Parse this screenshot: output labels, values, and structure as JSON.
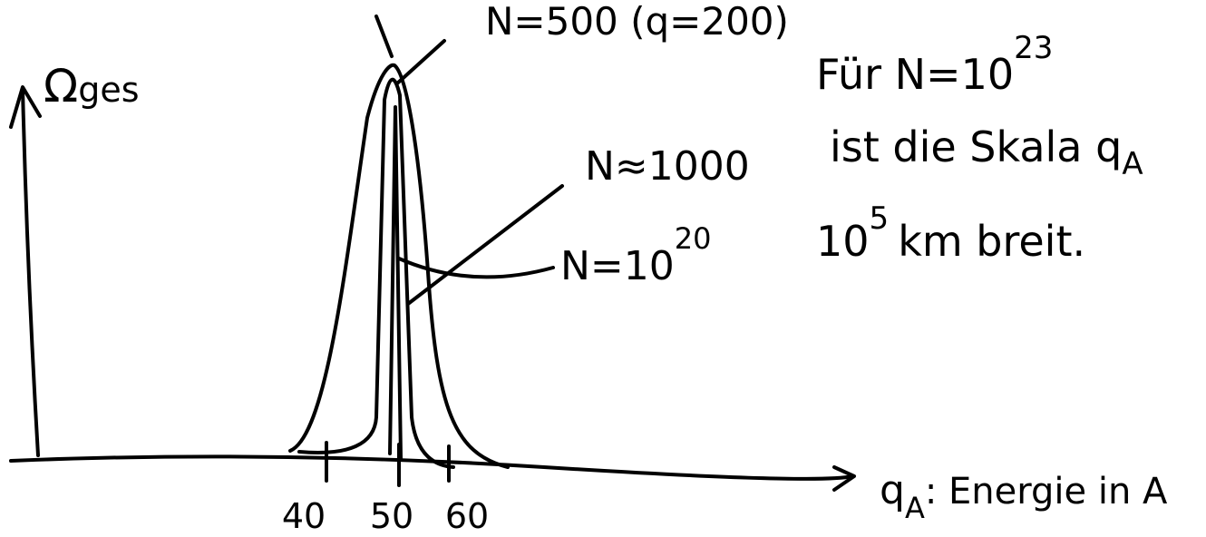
{
  "axes": {
    "y_label": "Ω",
    "y_label_sub": "ges",
    "x_label": "q",
    "x_label_sub": "A",
    "x_label_rest": ": Energie in A",
    "ticks": [
      "40",
      "50",
      "60"
    ]
  },
  "curves": [
    {
      "label": "N=500 (q=200)"
    },
    {
      "label": "N≈1000"
    },
    {
      "label": "N=10",
      "label_sup": "20"
    }
  ],
  "note": {
    "line1": "Für N=10",
    "line1_sup": "23",
    "line2": "ist die Skala q",
    "line2_sub": "A",
    "line3_base": "10",
    "line3_sup": "5",
    "line3_rest": "km breit."
  }
}
